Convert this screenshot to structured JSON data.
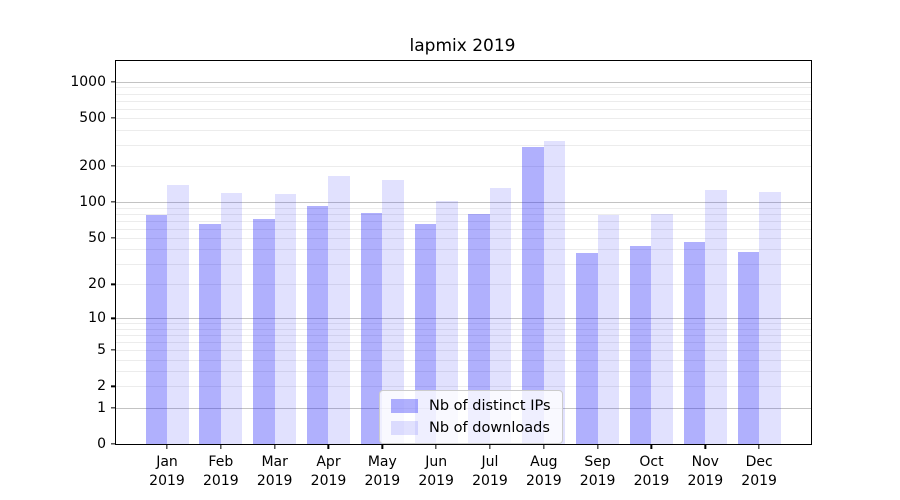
{
  "chart_data": {
    "type": "bar",
    "title": "lapmix 2019",
    "xlabel": "",
    "ylabel": "",
    "scale": "log1p",
    "ylim": [
      0,
      1490
    ],
    "grid": "on",
    "legend_position": "lower center",
    "background_color": "#ffffff",
    "categories": [
      "Jan",
      "Feb",
      "Mar",
      "Apr",
      "May",
      "Jun",
      "Jul",
      "Aug",
      "Sep",
      "Oct",
      "Nov",
      "Dec"
    ],
    "x_tick_second_line": "2019",
    "yticks": [
      0,
      1,
      2,
      5,
      10,
      20,
      50,
      100,
      200,
      500,
      1000
    ],
    "gridlines": {
      "major": [
        1,
        10,
        100,
        1000
      ],
      "minor": [
        2,
        3,
        4,
        5,
        6,
        7,
        8,
        9,
        20,
        30,
        40,
        50,
        60,
        70,
        80,
        90,
        200,
        300,
        400,
        500,
        600,
        700,
        800,
        900
      ]
    },
    "series": [
      {
        "name": "Nb of distinct IPs",
        "color": "rgba(30,30,250,0.35)",
        "color_hex_on_white": "#a8a8fb",
        "values": [
          78,
          66,
          72,
          92,
          81,
          65,
          80,
          290,
          37,
          43,
          46,
          38
        ]
      },
      {
        "name": "Nb of downloads",
        "color": "rgba(30,30,250,0.135)",
        "color_hex_on_white": "#dcdcfc",
        "values": [
          140,
          119,
          117,
          165,
          153,
          102,
          130,
          325,
          78,
          79,
          126,
          122
        ]
      }
    ]
  }
}
